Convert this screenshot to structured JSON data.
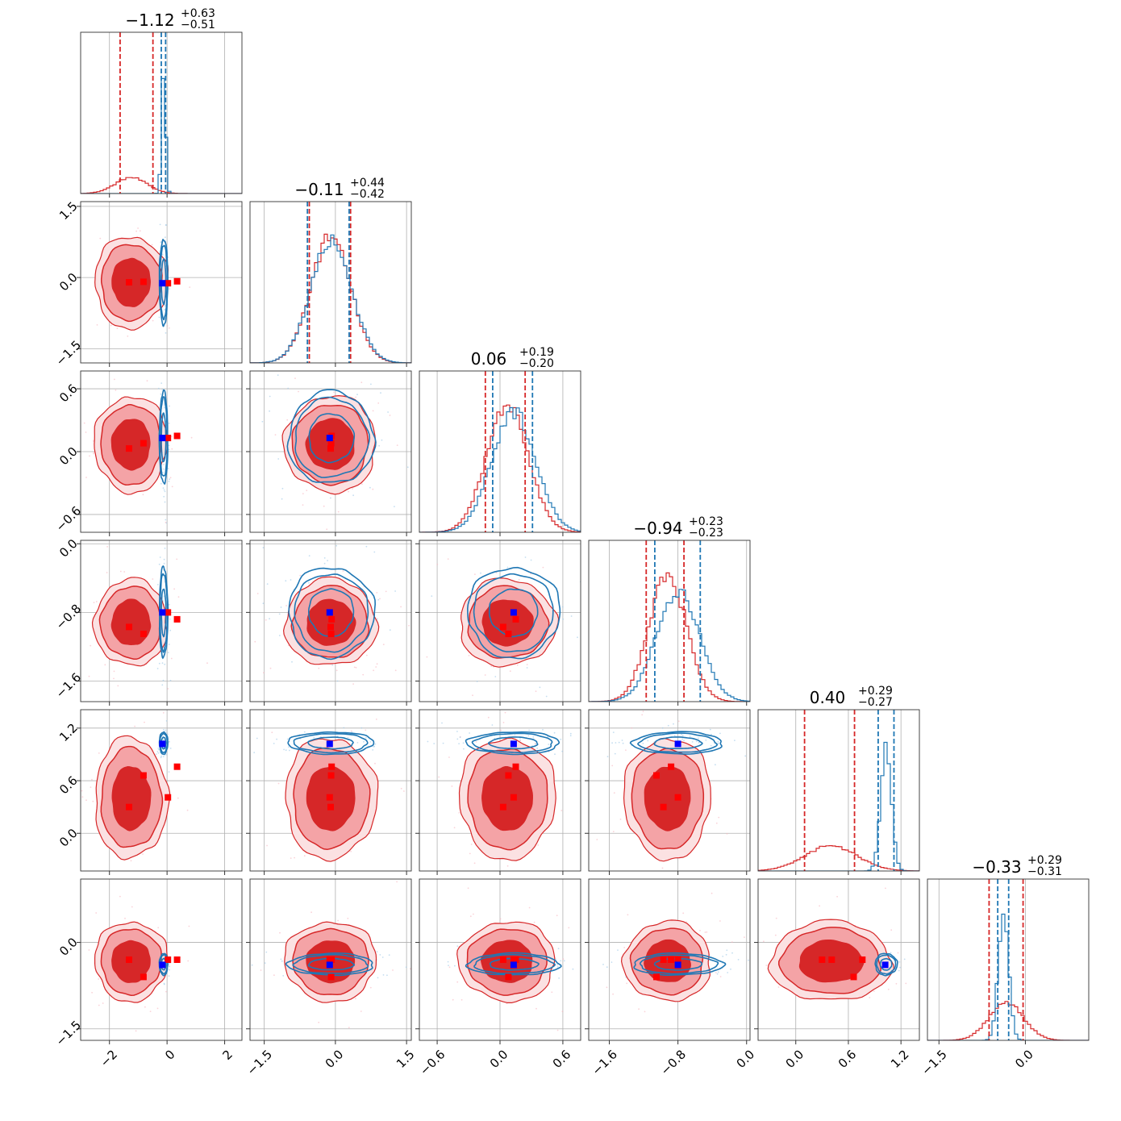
{
  "chart_data": {
    "type": "corner",
    "n_params": 6,
    "colors": {
      "red": "#d62728",
      "blue": "#1f77b4",
      "red_fill_light": "#f4a3a6",
      "marker_red": "#ff0000",
      "marker_blue": "#0000ff"
    },
    "grid": true,
    "params": [
      {
        "range": [
          -3.0,
          2.6
        ],
        "ticks": [
          -2,
          0,
          2
        ],
        "tick_labels": [
          "−2",
          "0",
          "2"
        ],
        "red_mean": -1.25,
        "red_sd": 0.55,
        "blue_mean": -0.12,
        "blue_sd": 0.07,
        "red_q": [
          -1.63,
          -0.49
        ],
        "blue_q": [
          -0.2,
          -0.05
        ],
        "title": {
          "main": "−1.12",
          "up": "+0.63",
          "lo": "−0.51"
        }
      },
      {
        "range": [
          -1.8,
          1.6
        ],
        "ticks": [
          -1.5,
          0.0,
          1.5
        ],
        "tick_labels": [
          "−1.5",
          "0.0",
          "1.5"
        ],
        "red_mean": -0.1,
        "red_sd": 0.42,
        "blue_mean": -0.09,
        "blue_sd": 0.43,
        "red_q": [
          -0.55,
          0.32
        ],
        "blue_q": [
          -0.59,
          0.29
        ],
        "title": {
          "main": "−0.11",
          "up": "+0.44",
          "lo": "−0.42"
        }
      },
      {
        "range": [
          -0.77,
          0.77
        ],
        "ticks": [
          -0.6,
          0.0,
          0.6
        ],
        "tick_labels": [
          "−0.6",
          "0.0",
          "0.6"
        ],
        "red_mean": 0.07,
        "red_sd": 0.2,
        "blue_mean": 0.13,
        "blue_sd": 0.21,
        "red_q": [
          -0.14,
          0.24
        ],
        "blue_q": [
          -0.07,
          0.31
        ],
        "title": {
          "main": "0.06",
          "up": "+0.19",
          "lo": "−0.20"
        }
      },
      {
        "range": [
          -1.84,
          0.04
        ],
        "ticks": [
          -1.6,
          -0.8,
          0.0
        ],
        "tick_labels": [
          "−1.6",
          "−0.8",
          "0.0"
        ],
        "red_mean": -0.92,
        "red_sd": 0.22,
        "blue_mean": -0.8,
        "blue_sd": 0.25,
        "red_q": [
          -1.17,
          -0.73
        ],
        "blue_q": [
          -1.07,
          -0.54
        ],
        "title": {
          "main": "−0.94",
          "up": "+0.23",
          "lo": "−0.23"
        }
      },
      {
        "range": [
          -0.43,
          1.41
        ],
        "ticks": [
          0.0,
          0.6,
          1.2
        ],
        "tick_labels": [
          "0.0",
          "0.6",
          "1.2"
        ],
        "red_mean": 0.4,
        "red_sd": 0.3,
        "blue_mean": 1.03,
        "blue_sd": 0.06,
        "red_q": [
          0.1,
          0.67
        ],
        "blue_q": [
          0.94,
          1.12
        ],
        "title": {
          "main": "0.40",
          "up": "+0.29",
          "lo": "−0.27"
        }
      },
      {
        "range": [
          -1.7,
          1.1
        ],
        "ticks": [
          -1.5,
          0.0
        ],
        "tick_labels": [
          "−1.5",
          "0.0"
        ],
        "red_mean": -0.33,
        "red_sd": 0.3,
        "blue_mean": -0.38,
        "blue_sd": 0.09,
        "red_q": [
          -0.63,
          -0.04
        ],
        "blue_q": [
          -0.48,
          -0.29
        ],
        "title": {
          "main": "−0.33",
          "up": "+0.29",
          "lo": "−0.31"
        }
      }
    ],
    "row_tick_params": [
      1,
      2,
      3,
      4,
      5
    ],
    "red_markers": [
      [
        -1.32,
        -0.1,
        0.03,
        -0.97,
        0.3,
        -0.3
      ],
      [
        -0.82,
        -0.09,
        0.08,
        -1.05,
        0.66,
        -0.6
      ],
      [
        0.03,
        -0.12,
        0.13,
        -0.8,
        0.41,
        -0.3
      ],
      [
        0.35,
        -0.08,
        0.15,
        -0.88,
        0.76,
        -0.3
      ]
    ],
    "blue_marker": [
      -0.16,
      -0.12,
      0.13,
      -0.8,
      1.02,
      -0.39
    ]
  }
}
